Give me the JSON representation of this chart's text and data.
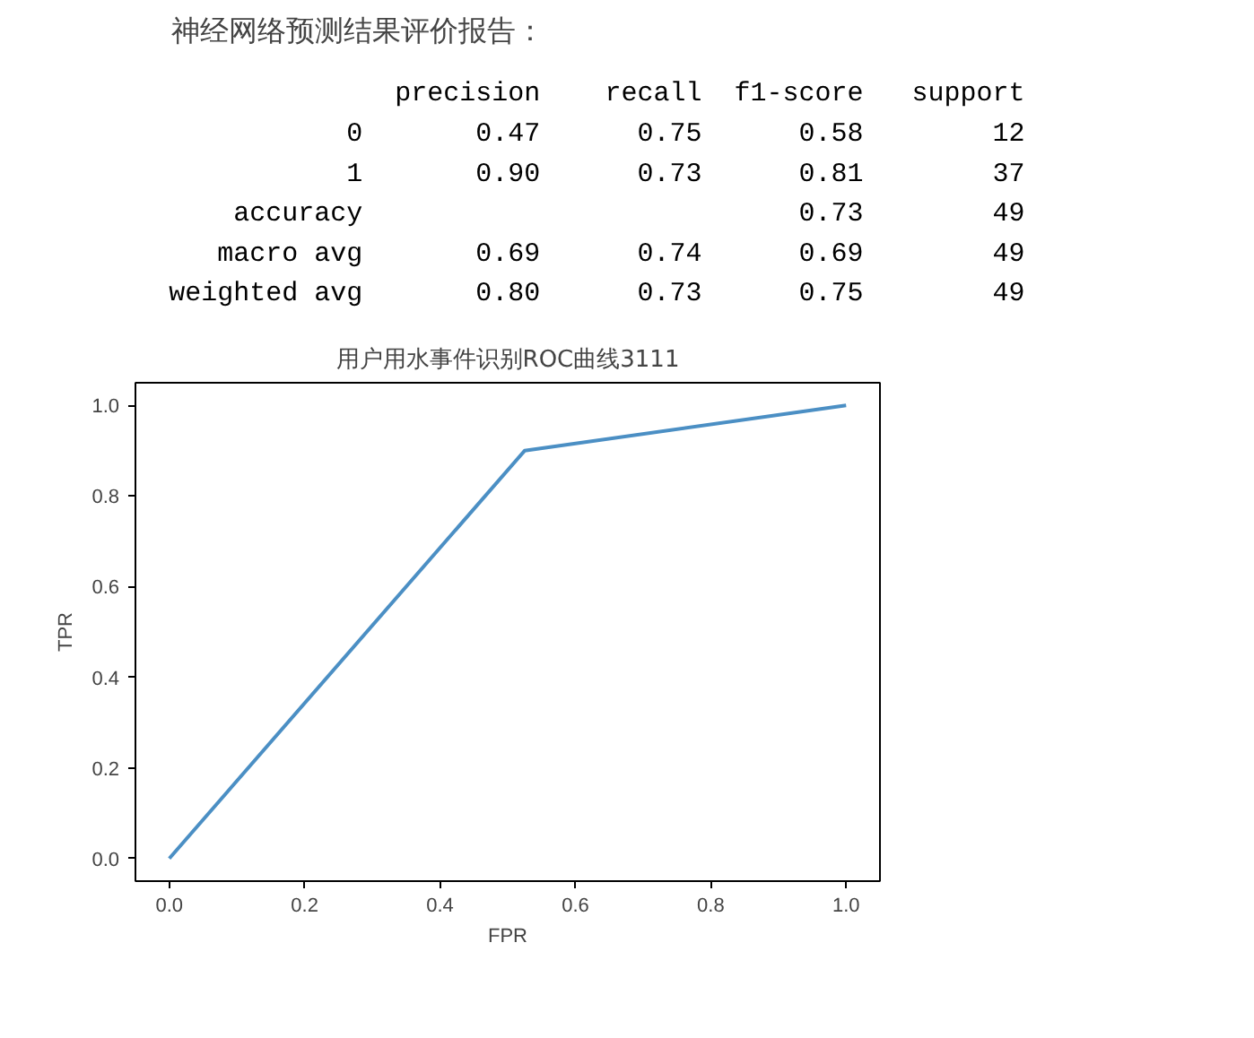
{
  "chart_data": [
    {
      "type": "other",
      "title": "神经网络预测结果评价报告：",
      "annotations": [
        "              precision    recall  f1-score   support",
        "           0       0.47      0.75      0.58        12",
        "           1       0.90      0.73      0.81        37",
        "    accuracy                           0.73        49",
        "   macro avg       0.69      0.74      0.69        49",
        "weighted avg       0.80      0.73      0.75        49"
      ]
    },
    {
      "type": "line",
      "title": "用户用水事件识别ROC曲线3111",
      "xlabel": "FPR",
      "ylabel": "TPR",
      "grid": false,
      "x": [
        0,
        0.525,
        1
      ],
      "series": [
        {
          "color": "#4b8fc4",
          "values": [
            0,
            0.9,
            1
          ]
        }
      ],
      "xlim": [
        -0.05,
        1.05
      ],
      "ylim": [
        -0.05,
        1.05
      ],
      "xticks": [
        {
          "value": 0,
          "label": "0.0"
        },
        {
          "value": 0.2,
          "label": "0.2"
        },
        {
          "value": 0.4,
          "label": "0.4"
        },
        {
          "value": 0.6,
          "label": "0.6"
        },
        {
          "value": 0.8,
          "label": "0.8"
        },
        {
          "value": 1,
          "label": "1.0"
        }
      ],
      "yticks": [
        {
          "value": 0,
          "label": "0.0"
        },
        {
          "value": 0.2,
          "label": "0.2"
        },
        {
          "value": 0.4,
          "label": "0.4"
        },
        {
          "value": 0.6,
          "label": "0.6"
        },
        {
          "value": 0.8,
          "label": "0.8"
        },
        {
          "value": 1,
          "label": "1.0"
        }
      ]
    }
  ]
}
